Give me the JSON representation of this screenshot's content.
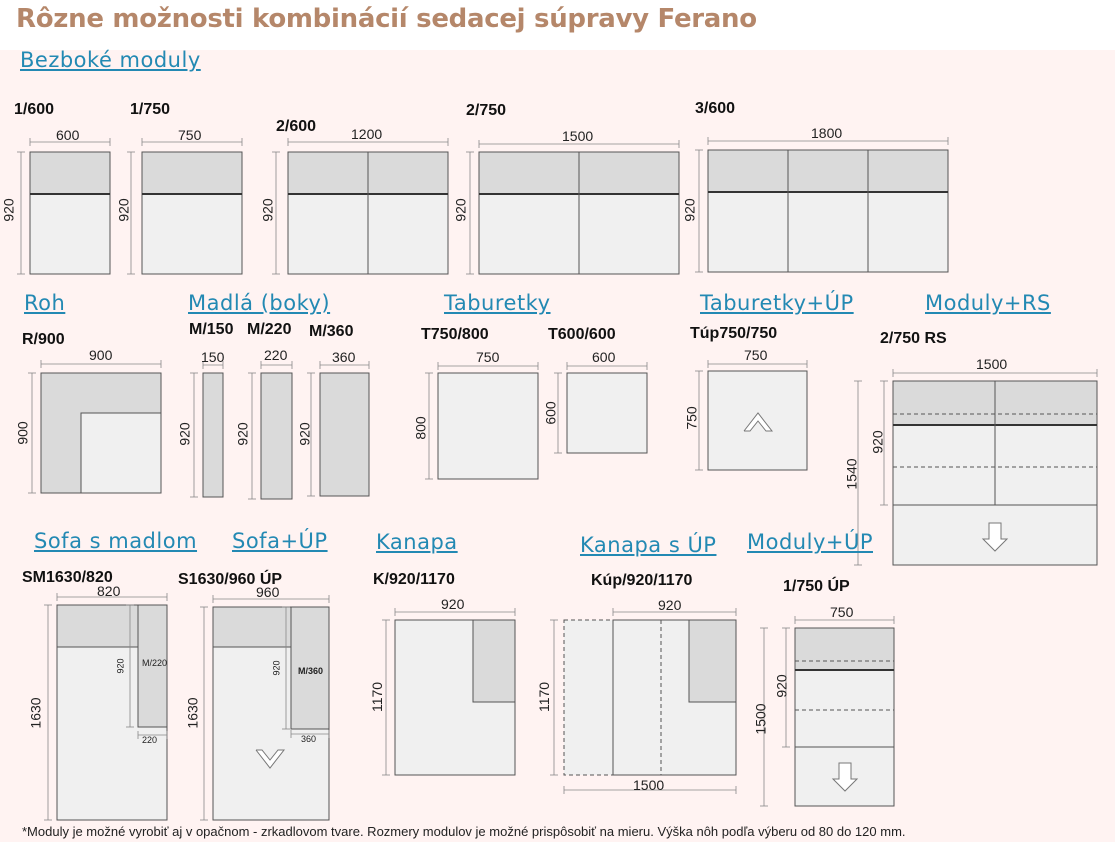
{
  "title": "Rôzne možnosti kombinácií sedacej súpravy Ferano",
  "sections": {
    "bezboke": "Bezboké moduly",
    "roh": "Roh",
    "madla": "Madlá (boky)",
    "taburetky": "Taburetky",
    "taburetky_up": "Taburetky+ÚP",
    "moduly_rs": "Moduly+RS",
    "sofa_madlom": "Sofa s madlom",
    "sofa_up": "Sofa+ÚP",
    "kanapa": "Kanapa",
    "kanapa_up": "Kanapa s ÚP",
    "moduly_up": "Moduly+ÚP"
  },
  "modules": {
    "m1_600": {
      "code": "1/600",
      "width": "600",
      "height": "920"
    },
    "m1_750": {
      "code": "1/750",
      "width": "750",
      "height": "920"
    },
    "m2_600": {
      "code": "2/600",
      "width": "1200",
      "height": "920"
    },
    "m2_750": {
      "code": "2/750",
      "width": "1500",
      "height": "920"
    },
    "m3_600": {
      "code": "3/600",
      "width": "1800",
      "height": "920"
    },
    "r900": {
      "code": "R/900",
      "width": "900",
      "height": "900"
    },
    "m150": {
      "code": "M/150",
      "width": "150",
      "height": "920"
    },
    "m220": {
      "code": "M/220",
      "width": "220",
      "height": "920"
    },
    "m360": {
      "code": "M/360",
      "width": "360",
      "height": "920"
    },
    "t750": {
      "code": "T750/800",
      "width": "750",
      "height": "800"
    },
    "t600": {
      "code": "T600/600",
      "width": "600",
      "height": "600"
    },
    "tup": {
      "code": "Túp750/750",
      "width": "750",
      "height": "750"
    },
    "rs": {
      "code": "2/750 RS",
      "width": "1500",
      "height_inner": "920",
      "height_total": "1540"
    },
    "sm": {
      "code": "SM1630/820",
      "width": "820",
      "height_total": "1630",
      "height_inner": "920",
      "arm_label": "M/220",
      "arm_width": "220"
    },
    "s_up": {
      "code": "S1630/960 ÚP",
      "width": "960",
      "height_total": "1630",
      "height_inner": "920",
      "arm_label": "M/360",
      "arm_width": "360"
    },
    "k": {
      "code": "K/920/1170",
      "width": "920",
      "height": "1170"
    },
    "kup": {
      "code": "Kúp/920/1170",
      "width_top": "920",
      "height": "1170",
      "width_bottom": "1500"
    },
    "mup": {
      "code": "1/750 ÚP",
      "width": "750",
      "height_inner": "920",
      "height_total": "1500"
    }
  },
  "footnote": "*Moduly je možné vyrobiť aj v opačnom - zrkadlovom tvare.  Rozmery modulov je možné prispôsobiť na mieru. Výška nôh podľa výberu od 80 do 120 mm.",
  "colors": {
    "title": "#b5876a",
    "header": "#2389b3",
    "panel": "#fff3f2",
    "seat": "#f0f0f0",
    "back": "#dadada",
    "outline": "#555555"
  }
}
